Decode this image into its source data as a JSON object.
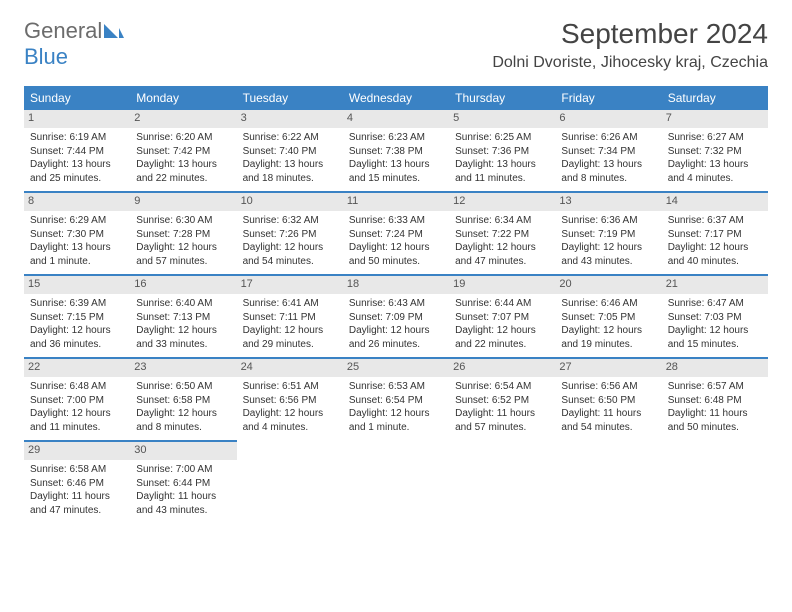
{
  "logo": {
    "general": "General",
    "blue": "Blue"
  },
  "title": "September 2024",
  "location": "Dolni Dvoriste, Jihocesky kraj, Czechia",
  "colors": {
    "accent": "#3a82c4",
    "daynum_bg": "#e8e8e8",
    "text": "#333333"
  },
  "day_headers": [
    "Sunday",
    "Monday",
    "Tuesday",
    "Wednesday",
    "Thursday",
    "Friday",
    "Saturday"
  ],
  "weeks": [
    [
      {
        "n": "1",
        "sr": "Sunrise: 6:19 AM",
        "ss": "Sunset: 7:44 PM",
        "dl1": "Daylight: 13 hours",
        "dl2": "and 25 minutes."
      },
      {
        "n": "2",
        "sr": "Sunrise: 6:20 AM",
        "ss": "Sunset: 7:42 PM",
        "dl1": "Daylight: 13 hours",
        "dl2": "and 22 minutes."
      },
      {
        "n": "3",
        "sr": "Sunrise: 6:22 AM",
        "ss": "Sunset: 7:40 PM",
        "dl1": "Daylight: 13 hours",
        "dl2": "and 18 minutes."
      },
      {
        "n": "4",
        "sr": "Sunrise: 6:23 AM",
        "ss": "Sunset: 7:38 PM",
        "dl1": "Daylight: 13 hours",
        "dl2": "and 15 minutes."
      },
      {
        "n": "5",
        "sr": "Sunrise: 6:25 AM",
        "ss": "Sunset: 7:36 PM",
        "dl1": "Daylight: 13 hours",
        "dl2": "and 11 minutes."
      },
      {
        "n": "6",
        "sr": "Sunrise: 6:26 AM",
        "ss": "Sunset: 7:34 PM",
        "dl1": "Daylight: 13 hours",
        "dl2": "and 8 minutes."
      },
      {
        "n": "7",
        "sr": "Sunrise: 6:27 AM",
        "ss": "Sunset: 7:32 PM",
        "dl1": "Daylight: 13 hours",
        "dl2": "and 4 minutes."
      }
    ],
    [
      {
        "n": "8",
        "sr": "Sunrise: 6:29 AM",
        "ss": "Sunset: 7:30 PM",
        "dl1": "Daylight: 13 hours",
        "dl2": "and 1 minute."
      },
      {
        "n": "9",
        "sr": "Sunrise: 6:30 AM",
        "ss": "Sunset: 7:28 PM",
        "dl1": "Daylight: 12 hours",
        "dl2": "and 57 minutes."
      },
      {
        "n": "10",
        "sr": "Sunrise: 6:32 AM",
        "ss": "Sunset: 7:26 PM",
        "dl1": "Daylight: 12 hours",
        "dl2": "and 54 minutes."
      },
      {
        "n": "11",
        "sr": "Sunrise: 6:33 AM",
        "ss": "Sunset: 7:24 PM",
        "dl1": "Daylight: 12 hours",
        "dl2": "and 50 minutes."
      },
      {
        "n": "12",
        "sr": "Sunrise: 6:34 AM",
        "ss": "Sunset: 7:22 PM",
        "dl1": "Daylight: 12 hours",
        "dl2": "and 47 minutes."
      },
      {
        "n": "13",
        "sr": "Sunrise: 6:36 AM",
        "ss": "Sunset: 7:19 PM",
        "dl1": "Daylight: 12 hours",
        "dl2": "and 43 minutes."
      },
      {
        "n": "14",
        "sr": "Sunrise: 6:37 AM",
        "ss": "Sunset: 7:17 PM",
        "dl1": "Daylight: 12 hours",
        "dl2": "and 40 minutes."
      }
    ],
    [
      {
        "n": "15",
        "sr": "Sunrise: 6:39 AM",
        "ss": "Sunset: 7:15 PM",
        "dl1": "Daylight: 12 hours",
        "dl2": "and 36 minutes."
      },
      {
        "n": "16",
        "sr": "Sunrise: 6:40 AM",
        "ss": "Sunset: 7:13 PM",
        "dl1": "Daylight: 12 hours",
        "dl2": "and 33 minutes."
      },
      {
        "n": "17",
        "sr": "Sunrise: 6:41 AM",
        "ss": "Sunset: 7:11 PM",
        "dl1": "Daylight: 12 hours",
        "dl2": "and 29 minutes."
      },
      {
        "n": "18",
        "sr": "Sunrise: 6:43 AM",
        "ss": "Sunset: 7:09 PM",
        "dl1": "Daylight: 12 hours",
        "dl2": "and 26 minutes."
      },
      {
        "n": "19",
        "sr": "Sunrise: 6:44 AM",
        "ss": "Sunset: 7:07 PM",
        "dl1": "Daylight: 12 hours",
        "dl2": "and 22 minutes."
      },
      {
        "n": "20",
        "sr": "Sunrise: 6:46 AM",
        "ss": "Sunset: 7:05 PM",
        "dl1": "Daylight: 12 hours",
        "dl2": "and 19 minutes."
      },
      {
        "n": "21",
        "sr": "Sunrise: 6:47 AM",
        "ss": "Sunset: 7:03 PM",
        "dl1": "Daylight: 12 hours",
        "dl2": "and 15 minutes."
      }
    ],
    [
      {
        "n": "22",
        "sr": "Sunrise: 6:48 AM",
        "ss": "Sunset: 7:00 PM",
        "dl1": "Daylight: 12 hours",
        "dl2": "and 11 minutes."
      },
      {
        "n": "23",
        "sr": "Sunrise: 6:50 AM",
        "ss": "Sunset: 6:58 PM",
        "dl1": "Daylight: 12 hours",
        "dl2": "and 8 minutes."
      },
      {
        "n": "24",
        "sr": "Sunrise: 6:51 AM",
        "ss": "Sunset: 6:56 PM",
        "dl1": "Daylight: 12 hours",
        "dl2": "and 4 minutes."
      },
      {
        "n": "25",
        "sr": "Sunrise: 6:53 AM",
        "ss": "Sunset: 6:54 PM",
        "dl1": "Daylight: 12 hours",
        "dl2": "and 1 minute."
      },
      {
        "n": "26",
        "sr": "Sunrise: 6:54 AM",
        "ss": "Sunset: 6:52 PM",
        "dl1": "Daylight: 11 hours",
        "dl2": "and 57 minutes."
      },
      {
        "n": "27",
        "sr": "Sunrise: 6:56 AM",
        "ss": "Sunset: 6:50 PM",
        "dl1": "Daylight: 11 hours",
        "dl2": "and 54 minutes."
      },
      {
        "n": "28",
        "sr": "Sunrise: 6:57 AM",
        "ss": "Sunset: 6:48 PM",
        "dl1": "Daylight: 11 hours",
        "dl2": "and 50 minutes."
      }
    ],
    [
      {
        "n": "29",
        "sr": "Sunrise: 6:58 AM",
        "ss": "Sunset: 6:46 PM",
        "dl1": "Daylight: 11 hours",
        "dl2": "and 47 minutes."
      },
      {
        "n": "30",
        "sr": "Sunrise: 7:00 AM",
        "ss": "Sunset: 6:44 PM",
        "dl1": "Daylight: 11 hours",
        "dl2": "and 43 minutes."
      },
      null,
      null,
      null,
      null,
      null
    ]
  ]
}
